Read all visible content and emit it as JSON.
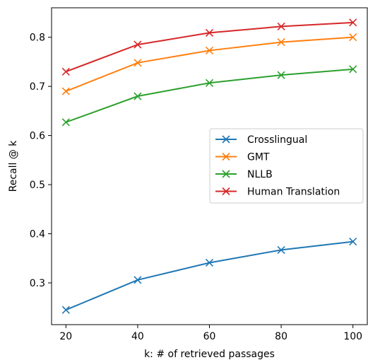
{
  "chart_data": {
    "type": "line",
    "title": "",
    "xlabel": "k: # of retrieved passages",
    "ylabel": "Recall @ k",
    "x": [
      20,
      40,
      60,
      80,
      100
    ],
    "xlim": [
      16,
      104
    ],
    "ylim": [
      0.215,
      0.86
    ],
    "xticks": [
      20,
      40,
      60,
      80,
      100
    ],
    "yticks": [
      0.3,
      0.4,
      0.5,
      0.6,
      0.7,
      0.8
    ],
    "ytick_labels": [
      "0.3",
      "0.4",
      "0.5",
      "0.6",
      "0.7",
      "0.8"
    ],
    "grid": false,
    "legend_position": "center-right",
    "marker": "x",
    "series": [
      {
        "name": "Crosslingual",
        "color": "#1f77b4",
        "values": [
          0.245,
          0.306,
          0.341,
          0.367,
          0.384
        ]
      },
      {
        "name": "GMT",
        "color": "#ff7f0e",
        "values": [
          0.69,
          0.748,
          0.773,
          0.79,
          0.8
        ]
      },
      {
        "name": "NLLB",
        "color": "#2ca02c",
        "values": [
          0.627,
          0.68,
          0.707,
          0.723,
          0.735
        ]
      },
      {
        "name": "Human Translation",
        "color": "#d62728",
        "values": [
          0.73,
          0.785,
          0.809,
          0.822,
          0.83
        ]
      }
    ]
  }
}
